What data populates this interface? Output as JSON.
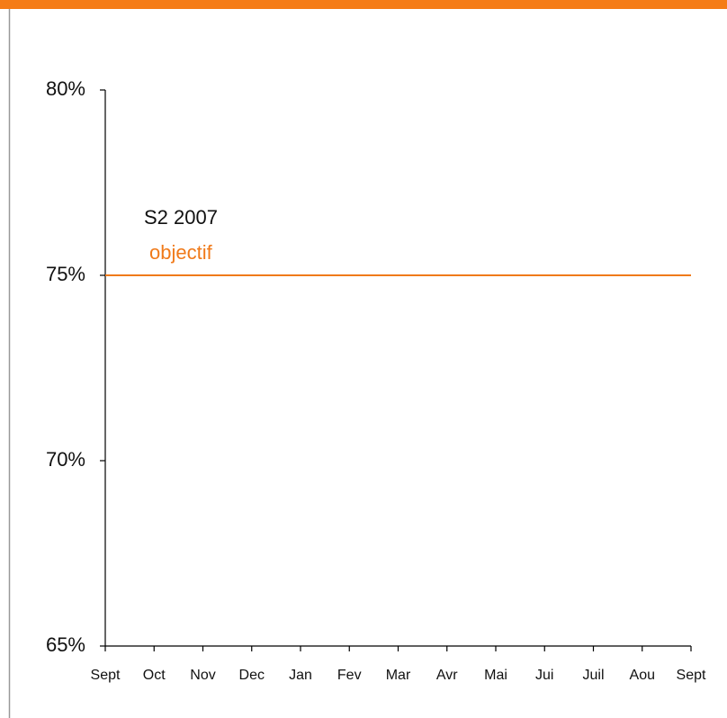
{
  "chart_data": {
    "type": "line",
    "annotation": "S2 2007",
    "categories": [
      "Sept",
      "Oct",
      "Nov",
      "Dec",
      "Jan",
      "Fev",
      "Mar",
      "Avr",
      "Mai",
      "Jui",
      "Juil",
      "Aou",
      "Sept"
    ],
    "series": [
      {
        "name": "objectif",
        "color": "#f07a1a",
        "values": [
          75,
          75,
          75,
          75,
          75,
          75,
          75,
          75,
          75,
          75,
          75,
          75,
          75
        ]
      }
    ],
    "ylim": [
      65,
      80
    ],
    "yticks": [
      {
        "value": 65,
        "label": "65%"
      },
      {
        "value": 70,
        "label": "70%"
      },
      {
        "value": 75,
        "label": "75%"
      },
      {
        "value": 80,
        "label": "80%"
      }
    ],
    "grid": false
  }
}
